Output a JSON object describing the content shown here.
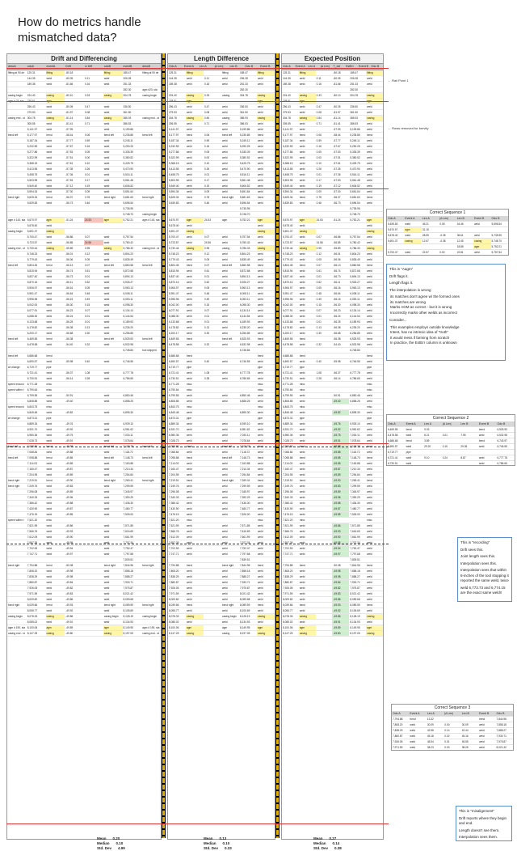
{
  "title": "How do metrics handle mismatched data?",
  "panels": [
    {
      "heading": "Drift and Differencing",
      "columns": [
        "descA",
        "odoA",
        "eventA",
        "Drift",
        "Lt Diff",
        "odoB",
        "eventB",
        "descB"
      ]
    },
    {
      "heading": "Length Difference",
      "columns": [
        "Odo A",
        "Event A",
        "Len A",
        "|Δ Len|",
        "Len B",
        "Odo B",
        "Event B"
      ]
    },
    {
      "heading": "Expected Position",
      "columns": [
        "Odo A",
        "Event A",
        "Len A",
        "|Δ Len|",
        "T_est",
        "EstErr",
        "Event B",
        "Odo B"
      ]
    }
  ],
  "rows": [
    [
      "fitting at 90 de",
      "125.31",
      "fitting",
      "-80.18",
      "",
      "fitting",
      "185.47",
      "fitting at 90 de"
    ],
    [
      "",
      "144.35",
      "weld",
      "-80.05",
      "0.11",
      "weld",
      "206.28",
      ""
    ],
    [
      "",
      "189.38",
      "weld",
      "-81.66",
      "0.16",
      "weld",
      "251.33",
      ""
    ],
    [
      "",
      "",
      "",
      "",
      "",
      "",
      "282.30",
      "agm #23, sta"
    ],
    [
      "casing begin",
      "224.40",
      "casing",
      "-80.10",
      "0.33",
      "casing",
      "304.78",
      "casing begin"
    ],
    [
      "agm # 23, sta",
      "238.91",
      "agm",
      "",
      "",
      "",
      "",
      ""
    ],
    [
      "",
      "256.43",
      "weld",
      "-80.05",
      "0.47",
      "weld",
      "336.50",
      ""
    ],
    [
      "",
      "279.53",
      "weld",
      "-81.97",
      "0.08",
      "weld",
      "361.50",
      ""
    ],
    [
      "casing end - st",
      "304.78",
      "casing",
      "-81.14",
      "0.84",
      "casing",
      "385.93",
      "casing end - st"
    ],
    [
      "",
      "305.55",
      "weld",
      "-81.41",
      "0.71",
      "weld",
      "386.53",
      ""
    ],
    [
      "",
      "5,141.97",
      "weld",
      "-57.99",
      "",
      "weld",
      "5,199.86",
      ""
    ],
    [
      "bend left",
      "5,177.97",
      "bend",
      "-58.44",
      "0.06",
      "bend left",
      "5,235.85",
      "bend left"
    ],
    [
      "",
      "5,187.34",
      "weld",
      "-57.77",
      "0.59",
      "weld",
      "5,245.11",
      ""
    ],
    [
      "",
      "5,232.59",
      "weld",
      "-57.67",
      "0.16",
      "weld",
      "5,290.25",
      ""
    ],
    [
      "",
      "5,277.86",
      "weld",
      "-57.53",
      "0.05",
      "weld",
      "5,335.39",
      ""
    ],
    [
      "",
      "5,322.99",
      "weld",
      "-57.51",
      "0.00",
      "weld",
      "5,380.52",
      ""
    ],
    [
      "",
      "5,368.15",
      "weld",
      "-57.61",
      "0.10",
      "weld",
      "5,425.75",
      ""
    ],
    [
      "",
      "5,413.55",
      "weld",
      "-57.35",
      "0.26",
      "weld",
      "5,470.90",
      ""
    ],
    [
      "",
      "5,458.75",
      "weld",
      "-57.36",
      "0.01",
      "weld",
      "5,516.11",
      ""
    ],
    [
      "",
      "5,503.95",
      "weld",
      "-57.53",
      "0.17",
      "weld",
      "5,561.48",
      ""
    ],
    [
      "",
      "5,549.40",
      "weld",
      "-57.12",
      "0.19",
      "weld",
      "5,606.52",
      ""
    ],
    [
      "",
      "5,594.34",
      "weld",
      "-57.30",
      "0.09",
      "weld",
      "5,651.64",
      ""
    ],
    [
      "bend right",
      "5,625.34",
      "bend",
      "-56.37",
      "0.78",
      "bend right",
      "5,681.63",
      "bend right"
    ],
    [
      "",
      "5,639.83",
      "weld",
      "-56.73",
      "0.46",
      "weld",
      "5,696.54",
      ""
    ],
    [
      "",
      "",
      "",
      "",
      "",
      "",
      "5,735.95",
      ""
    ],
    [
      "",
      "",
      "",
      "",
      "",
      "",
      "5,748.70",
      "casing begin"
    ],
    [
      "agm # 143, sta",
      "5,670.97",
      "agm",
      "-51.24",
      "24.53",
      "agm",
      "5,752.21",
      "agm # 143, sta"
    ],
    [
      "",
      "5,678.40",
      "weld",
      "",
      "",
      "",
      "",
      ""
    ],
    [
      "casing begin",
      "5,691.37",
      "casing",
      "",
      "",
      "",
      "",
      ""
    ],
    [
      "",
      "5,700.47",
      "weld",
      "-56.86",
      "0.07",
      "weld",
      "5,757.54",
      ""
    ],
    [
      "",
      "5,723.57",
      "weld",
      "-56.85",
      "24.56",
      "weld",
      "5,780.42",
      ""
    ],
    [
      "casing end - st",
      "5,730.44",
      "casing",
      "-55.89",
      "0.95",
      "casing",
      "5,786.33",
      "casing end - st"
    ],
    [
      "",
      "5,748.23",
      "weld",
      "-56.01",
      "0.12",
      "weld",
      "5,804.23",
      ""
    ],
    [
      "",
      "5,779.43",
      "weld",
      "-56.06",
      "0.05",
      "weld",
      "5,835.49",
      ""
    ],
    [
      "bend left",
      "5,804.45",
      "bend",
      "-56.13",
      "0.07",
      "bend left",
      "5,860.58",
      "bend left"
    ],
    [
      "",
      "5,815.94",
      "weld",
      "-56.74",
      "0.61",
      "weld",
      "5,872.68",
      ""
    ],
    [
      "",
      "5,837.40",
      "weld",
      "-56.73",
      "0.01",
      "weld",
      "5,894.13",
      ""
    ],
    [
      "",
      "5,870.16",
      "weld",
      "-56.11",
      "0.62",
      "weld",
      "5,926.27",
      ""
    ],
    [
      "",
      "5,906.97",
      "weld",
      "-56.16",
      "0.05",
      "weld",
      "5,963.13",
      ""
    ],
    [
      "",
      "5,951.47",
      "weld",
      "-56.64",
      "0.48",
      "weld",
      "6,008.11",
      ""
    ],
    [
      "",
      "5,996.96",
      "weld",
      "-56.15",
      "0.49",
      "weld",
      "6,053.11",
      ""
    ],
    [
      "",
      "6,042.00",
      "weld",
      "-56.30",
      "0.15",
      "weld",
      "6,098.30",
      ""
    ],
    [
      "",
      "6,077.91",
      "weld",
      "-56.23",
      "0.07",
      "weld",
      "6,134.14",
      ""
    ],
    [
      "",
      "6,088.30",
      "weld",
      "-56.24",
      "0.01",
      "weld",
      "6,144.54",
      ""
    ],
    [
      "",
      "6,133.68",
      "weld",
      "-56.25",
      "0.01",
      "weld",
      "6,189.93",
      ""
    ],
    [
      "",
      "6,178.82",
      "weld",
      "-56.38",
      "0.13",
      "weld",
      "6,235.20",
      ""
    ],
    [
      "",
      "6,200.17",
      "weld",
      "-56.68",
      "0.30",
      "weld",
      "6,256.85",
      ""
    ]
  ],
  "lower_rows": [
    [
      "bend left",
      "6,469.55",
      "bend",
      "-56.38",
      "",
      "bend left",
      "6,525.93",
      "bend left"
    ],
    [
      "",
      "6,478.58",
      "weld",
      "-54.40",
      "0.32",
      "weld",
      "6,532.98",
      ""
    ],
    [
      "",
      "",
      "",
      "",
      "",
      "",
      "6,748.84",
      "tool stopped"
    ],
    [
      "bend left",
      "6,686.68",
      "bend",
      "",
      "",
      "",
      "",
      ""
    ],
    [
      "",
      "6,690.57",
      "weld",
      "-55.98",
      "0.40",
      "weld",
      "6,746.55",
      ""
    ],
    [
      "wt change",
      "6,719.77",
      "pipe",
      "",
      "",
      "",
      "",
      ""
    ],
    [
      "",
      "6,721.41",
      "weld",
      "-56.37",
      "1.08",
      "weld",
      "6,777.78",
      ""
    ],
    [
      "",
      "6,730.51",
      "weld",
      "-56.14",
      "0.28",
      "weld",
      "6,786.65",
      ""
    ],
    [
      "speed excursi",
      "6,771.28",
      "misc",
      "",
      "",
      "",
      "",
      ""
    ],
    [
      "speed within t",
      "6,790.64",
      "misc",
      "",
      "",
      "",
      "",
      ""
    ],
    [
      "",
      "6,799.55",
      "weld",
      "-50.91",
      "",
      "weld",
      "6,850.46",
      ""
    ],
    [
      "",
      "6,808.85",
      "weld",
      "-49.40",
      "",
      "weld",
      "6,858.25",
      ""
    ],
    [
      "speed excursi",
      "6,843.75",
      "misc",
      "",
      "",
      "",
      "",
      ""
    ],
    [
      "",
      "6,845.48",
      "weld",
      "-49.82",
      "",
      "weld",
      "6,895.30",
      ""
    ],
    [
      "wt change",
      "6,873.31",
      "pipe",
      "",
      "",
      "",
      "",
      ""
    ],
    [
      "",
      "6,889.34",
      "weld",
      "-49.76",
      "",
      "weld",
      "6,939.10",
      ""
    ],
    [
      "",
      "6,931.70",
      "weld",
      "-49.92",
      "",
      "weld",
      "6,981.62",
      ""
    ],
    [
      "",
      "6,980.36",
      "weld",
      "-49.75",
      "",
      "weld",
      "7,030.11",
      ""
    ],
    [
      "",
      "7,028.73",
      "weld",
      "-49.91",
      "",
      "weld",
      "7,078.64",
      ""
    ],
    [
      "bend left",
      "7,055.80",
      "bend",
      "-49.98",
      "",
      "bend left",
      "7,105.78",
      "bend left"
    ],
    [
      "",
      "7,068.84",
      "weld",
      "-49.88",
      "",
      "weld",
      "7,118.72",
      ""
    ],
    [
      "bend left",
      "7,098.88",
      "bend",
      "-49.85",
      "",
      "bend left",
      "7,148.73",
      "bend left"
    ],
    [
      "",
      "7,114.03",
      "weld",
      "-49.85",
      "",
      "weld",
      "7,163.88",
      ""
    ],
    [
      "",
      "7,160.47",
      "weld",
      "-49.87",
      "",
      "weld",
      "7,210.34",
      ""
    ],
    [
      "",
      "7,204.95",
      "weld",
      "-49.89",
      "",
      "weld",
      "7,254.84",
      ""
    ],
    [
      "bend right",
      "7,219.51",
      "bend",
      "-49.90",
      "",
      "bend right",
      "7,269.41",
      "bend right"
    ],
    [
      "bend right",
      "7,249.76",
      "weld",
      "-49.83",
      "",
      "weld",
      "7,299.59",
      ""
    ],
    [
      "",
      "7,296.08",
      "weld",
      "-49.89",
      "",
      "weld",
      "7,345.97",
      ""
    ],
    [
      "",
      "7,340.33",
      "weld",
      "-49.96",
      "",
      "weld",
      "7,390.29",
      ""
    ],
    [
      "",
      "7,386.42",
      "weld",
      "-49.88",
      "",
      "weld",
      "7,436.30",
      ""
    ],
    [
      "",
      "7,430.90",
      "weld",
      "-49.87",
      "",
      "weld",
      "7,480.77",
      ""
    ],
    [
      "",
      "7,476.15",
      "weld",
      "-49.85",
      "",
      "weld",
      "7,526.00",
      ""
    ],
    [
      "speed within t",
      "7,521.20",
      "misc",
      "",
      "",
      "",
      "",
      ""
    ],
    [
      "",
      "7,521.99",
      "weld",
      "-49.86",
      "",
      "weld",
      "7,571.85",
      ""
    ],
    [
      "",
      "7,566.76",
      "weld",
      "-49.93",
      "",
      "weld",
      "7,616.69",
      ""
    ],
    [
      "",
      "7,612.09",
      "weld",
      "-49.90",
      "",
      "weld",
      "7,661.99",
      ""
    ],
    [
      "",
      "7,657.39",
      "weld",
      "-49.95",
      "",
      "weld",
      "7,707.34",
      ""
    ],
    [
      "",
      "7,702.53",
      "weld",
      "-49.94",
      "",
      "weld",
      "7,752.47",
      ""
    ],
    [
      "",
      "7,747.71",
      "weld",
      "-49.97",
      "",
      "weld",
      "7,797.68",
      ""
    ],
    [
      "",
      "",
      "",
      "",
      "",
      "",
      "7,839.51",
      ""
    ],
    [
      "bend right",
      "7,794.88",
      "bend",
      "-50.08",
      "",
      "bend right",
      "7,844.96",
      "bend right"
    ],
    [
      "",
      "7,808.20",
      "weld",
      "-49.98",
      "",
      "weld",
      "7,858.18",
      ""
    ],
    [
      "",
      "7,838.29",
      "weld",
      "-49.98",
      "",
      "weld",
      "7,888.27",
      ""
    ],
    [
      "",
      "7,880.87",
      "weld",
      "-49.84",
      "",
      "weld",
      "7,930.71",
      ""
    ],
    [
      "",
      "7,926.05",
      "weld",
      "-49.82",
      "",
      "weld",
      "7,975.87",
      ""
    ],
    [
      "",
      "7,971.59",
      "weld",
      "-49.83",
      "",
      "weld",
      "8,021.42",
      ""
    ],
    [
      "",
      "8,009.82",
      "weld",
      "-49.86",
      "",
      "weld",
      "8,059.68",
      ""
    ],
    [
      "bend right",
      "8,039.66",
      "bend",
      "-49.93",
      "",
      "bend right",
      "8,089.59",
      "bend right"
    ],
    [
      "",
      "8,055.77",
      "weld",
      "-49.92",
      "",
      "weld",
      "8,105.69",
      ""
    ],
    [
      "casing begin",
      "8,078.33",
      "casing",
      "-49.86",
      "",
      "casing begin",
      "8,128.19",
      "casing begin"
    ],
    [
      "",
      "8,085.02",
      "weld",
      "-49.91",
      "",
      "weld",
      "8,134.93",
      ""
    ],
    [
      "agm # 190, sta",
      "8,100.06",
      "agm",
      "-49.89",
      "",
      "agm",
      "8,149.95",
      "agm # 190, sta"
    ],
    [
      "casing end - st",
      "8,147.25",
      "casing",
      "-49.80",
      "",
      "casing",
      "8,197.05",
      "casing end - st"
    ]
  ],
  "stats": [
    {
      "label": "Mean",
      "drift": "0.20",
      "len": "0.13",
      "est": "0.27"
    },
    {
      "label": "Median",
      "drift": "0.10",
      "len": "0.10",
      "est": "0.14"
    },
    {
      "label": "Std. Dev",
      "drift": "4.99",
      "len": "0.33",
      "est": "0.38"
    }
  ],
  "side_labels": {
    "rail_point": "Rail Point 1",
    "rows_removed": "Rows removed for brevity"
  },
  "notes": {
    "aagm": {
      "heading": "This is \"Aagm\"",
      "line1": "Drift flags it.",
      "line2": "Length flags it.",
      "line3": "The interpolation is wrong",
      "bullets": [
        "its matches don't agree w/ the formed ones",
        "its matches are wrong",
        "Marks AGM as correct - but it is wrong",
        "Incorrectly marks other welds as incorrect"
      ],
      "consider": "Consider...",
      "cbullets": [
        "This examples employs outside knowledge",
        "Intent, has no intrinsic idea of \"truth\"",
        "It would mess if farming from scratch",
        "In practice, the EstErr column is unknown"
      ]
    },
    "recoding": {
      "heading": "This is \"recording\"",
      "line1": "Drift sees this.",
      "line2": "Joint length sees this.",
      "line3": "Interpolation sees this.",
      "line4": "Interpolation sees that within 6-inches of the tool stopping it reported the same weld, twice",
      "line5": "weld 6,773.73 and 6,774.15 are the exact same weld!!"
    },
    "misalign": {
      "heading": "This is \"misalignment\"",
      "line1": "Drift reports where they begin and end.",
      "line2": "Length doesn't see them.",
      "line3": "Interpolation sees them."
    }
  },
  "mini_tables": [
    {
      "title": "Correct Sequence 1",
      "cols": [
        "Odo A",
        "Event A",
        "Len A",
        "|Δ Len|",
        "Len B",
        "Event B",
        "Odo B"
      ],
      "rows": [
        [
          "5,639.83",
          "weld",
          "45.21",
          "0.05",
          "44.46",
          "weld",
          "5,696.54"
        ],
        [
          "5,670.97",
          "agm",
          "31.15",
          "",
          "",
          "",
          ""
        ],
        [
          "5,678.40",
          "weld",
          "28.59",
          "-0.35",
          "36.61",
          "weld",
          "5,735.95"
        ],
        [
          "5,691.37",
          "casing",
          "12.67",
          "-0.38",
          "12.45",
          "casing",
          "5,748.70"
        ],
        [
          "",
          "",
          "",
          "",
          "18.88",
          "agm",
          "5,752.21"
        ],
        [
          "5,700.47",
          "weld",
          "22.57",
          "0.00",
          "22.81",
          "weld",
          "5,757.54"
        ]
      ]
    },
    {
      "title": "Correct Sequence 2",
      "cols": [
        "Odo A",
        "Event A",
        "Len A",
        "|Δ Len|",
        "Len B",
        "Event B",
        "Odo B"
      ],
      "rows": [
        [
          "6,469.55",
          "bend",
          "9.03",
          "",
          "",
          "bend",
          "6,525.93"
        ],
        [
          "6,478.58",
          "weld",
          "8.21",
          "0.01",
          "7.95",
          "weld",
          "6,532.98"
        ],
        [
          "6,686.68",
          "bend",
          "3.89",
          "",
          "",
          "bend",
          "6,743.97"
        ],
        [
          "6,690.57",
          "weld",
          "29.20",
          "0.15",
          "29.35",
          "weld",
          "6,746.55"
        ],
        [
          "6,719.77",
          "pipe",
          "",
          "",
          "",
          "",
          ""
        ],
        [
          "6,721.41",
          "weld",
          "9.10",
          "0.24",
          "8.87",
          "weld",
          "6,777.78"
        ],
        [
          "6,730.51",
          "weld",
          "",
          "",
          "",
          "weld",
          "6,786.65"
        ]
      ]
    },
    {
      "title": "Correct Sequence 3",
      "cols": [
        "Odo A",
        "Event A",
        "Len A",
        "|Δ Len|",
        "Len B",
        "Event B",
        "Odo B"
      ],
      "rows": [
        [
          "7,794.88",
          "bend",
          "13.32",
          "",
          "",
          "bend",
          "7,844.96"
        ],
        [
          "7,808.20",
          "weld",
          "30.09",
          "0.00",
          "30.09",
          "weld",
          "7,858.18"
        ],
        [
          "7,838.29",
          "weld",
          "42.58",
          "0.14",
          "42.44",
          "weld",
          "7,888.27"
        ],
        [
          "7,880.87",
          "weld",
          "45.18",
          "0.02",
          "45.16",
          "weld",
          "7,930.71"
        ],
        [
          "7,926.05",
          "weld",
          "45.54",
          "0.01",
          "45.55",
          "weld",
          "7,975.87"
        ],
        [
          "7,971.59",
          "weld",
          "38.23",
          "0.03",
          "38.26",
          "weld",
          "8,021.42"
        ]
      ]
    }
  ],
  "colors": {
    "highlight_yellow": "#fff6a8",
    "highlight_green": "#cfeecf",
    "highlight_red": "#f6c3bd",
    "separator": "#e2b100",
    "note_border": "#5a8fd0",
    "red_line": "#d33"
  }
}
